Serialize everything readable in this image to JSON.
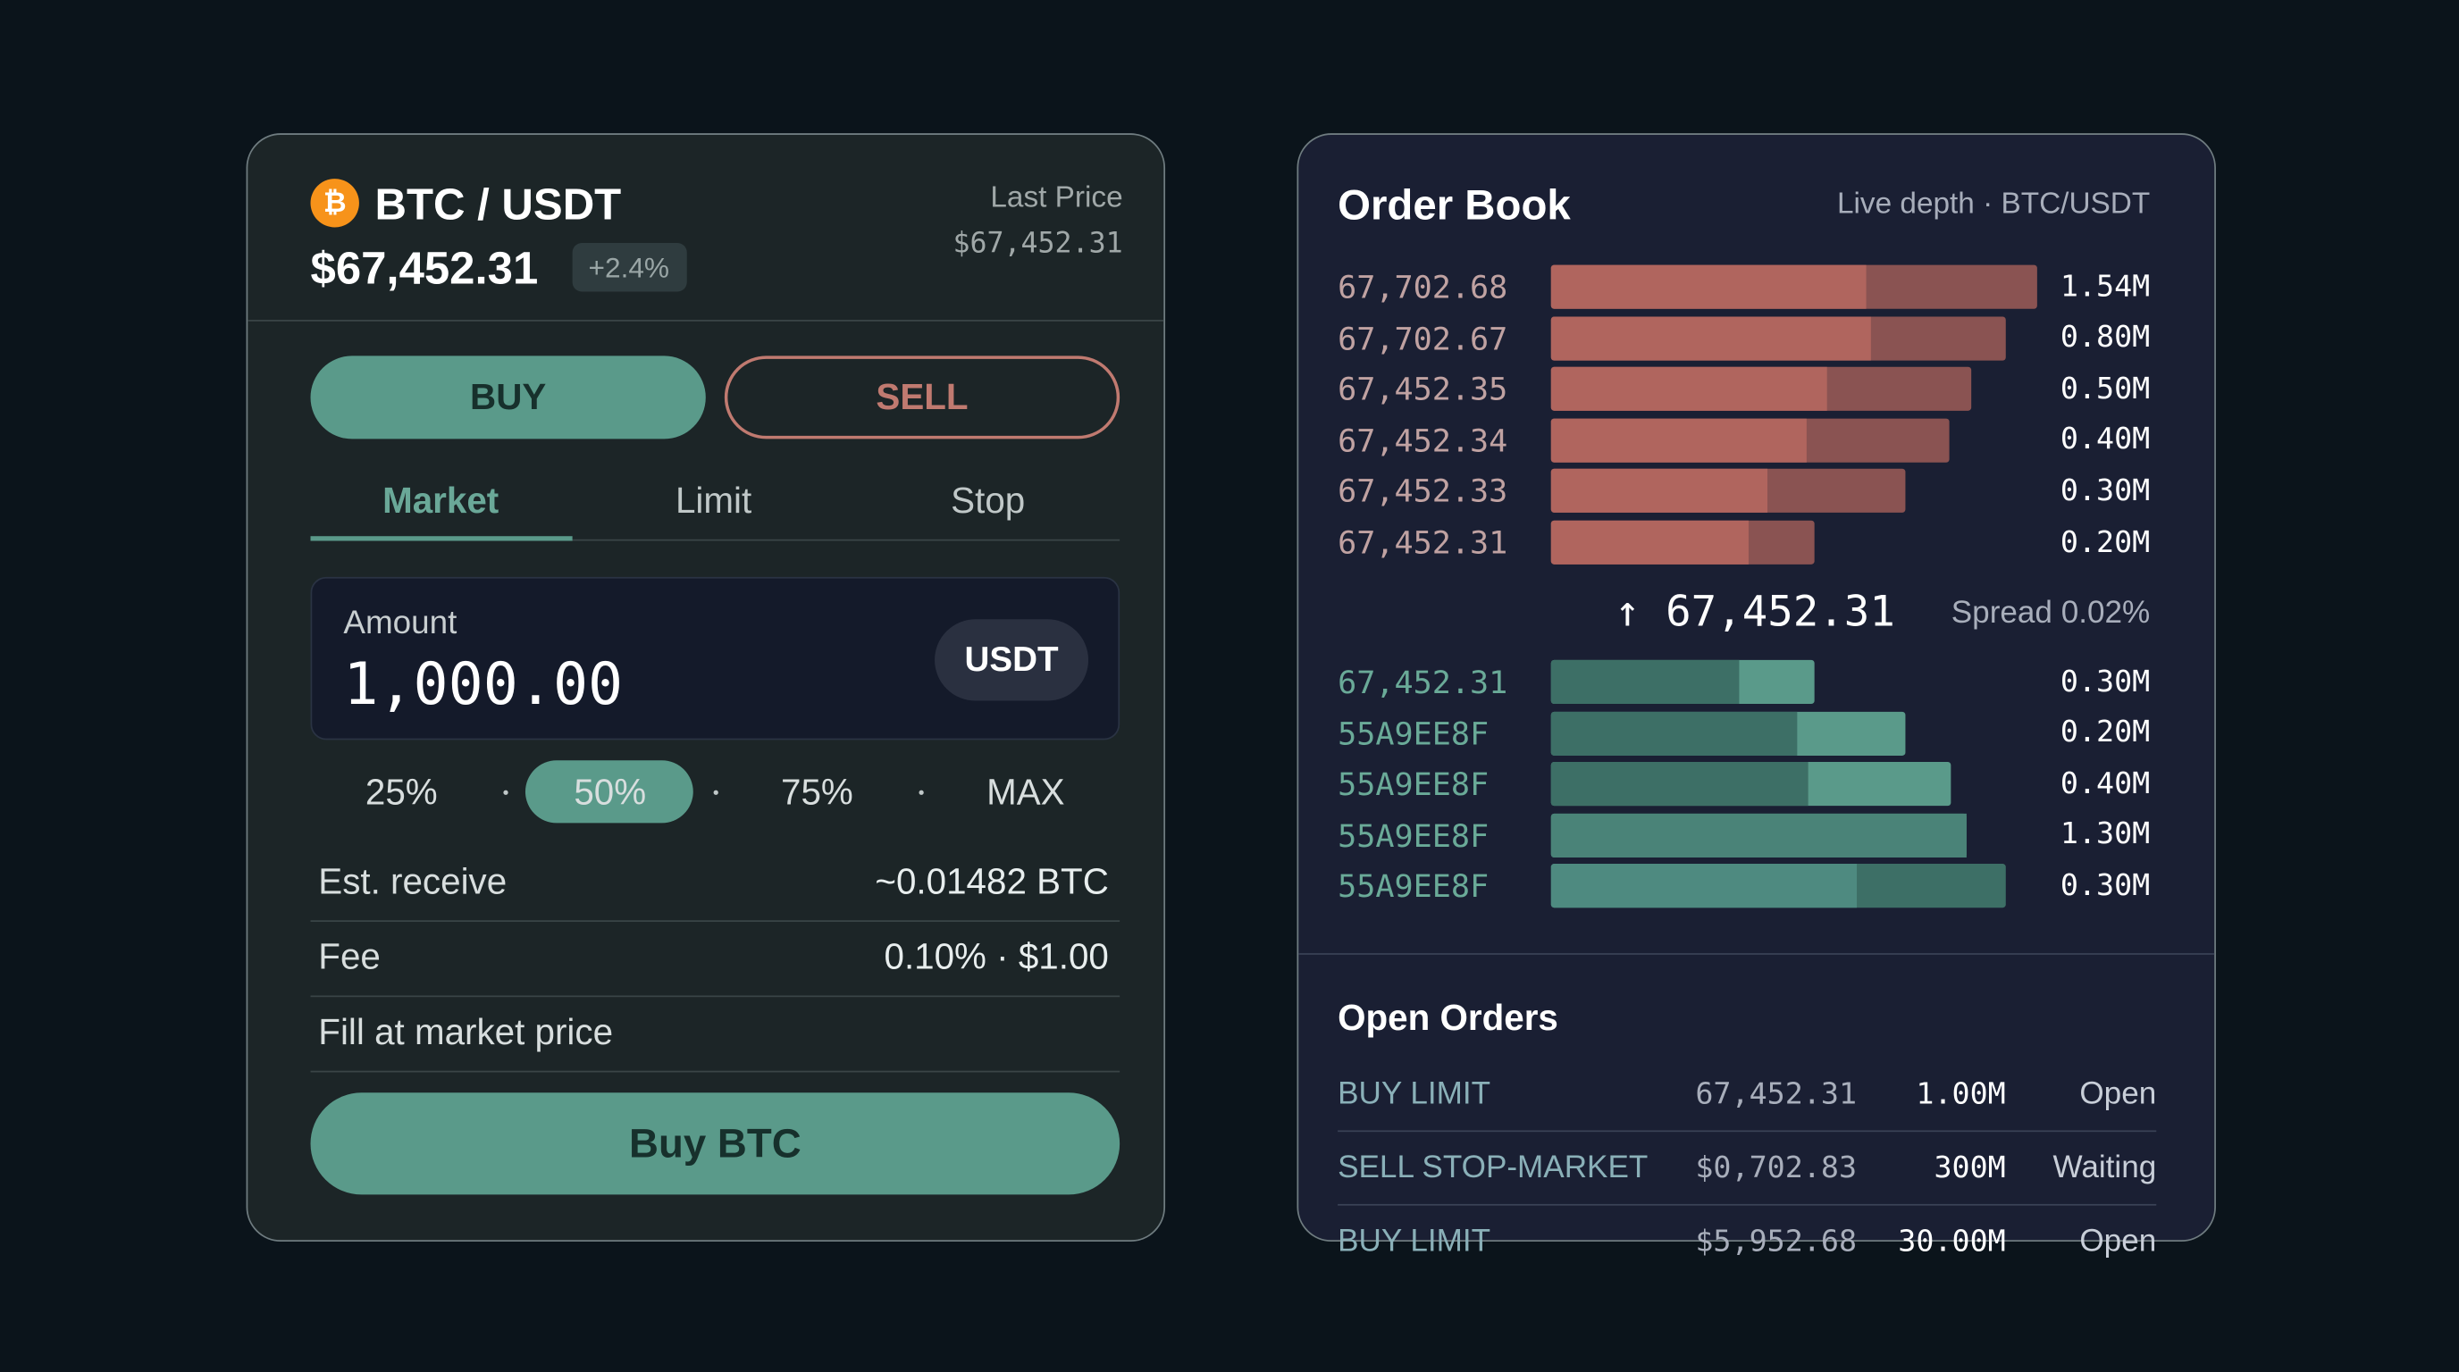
{
  "trade": {
    "pair": "BTC / USDT",
    "price": "$67,452.31",
    "change": "+2.4%",
    "last_price_label": "Last Price",
    "last_price": "$67,452.31",
    "sides": [
      "BUY",
      "SELL"
    ],
    "order_types": [
      "Market",
      "Limit",
      "Stop"
    ],
    "amount_label": "Amount",
    "amount": "1,000.00",
    "currency": "USDT",
    "percentages": [
      "25%",
      "50%",
      "75%",
      "MAX"
    ],
    "details": [
      {
        "label": "Est. receive",
        "value": "~0.01482 BTC"
      },
      {
        "label": "Fee",
        "value": "0.10% · $1.00"
      }
    ],
    "note": "Fill at market price",
    "submit": "Buy BTC"
  },
  "order_book": {
    "title": "Order Book",
    "subtitle": "Live depth · BTC/USDT",
    "asks": [
      {
        "price": "67,702.68",
        "size": "1.54M"
      },
      {
        "price": "67,702.67",
        "size": "0.80M"
      },
      {
        "price": "67,452.35",
        "size": "0.50M"
      },
      {
        "price": "67,452.34",
        "size": "0.40M"
      },
      {
        "price": "67,452.33",
        "size": "0.30M"
      },
      {
        "price": "67,452.31",
        "size": "0.20M"
      }
    ],
    "mid_price": "↑ 67,452.31",
    "spread": "Spread 0.02%",
    "bids": [
      {
        "price": "67,452.31",
        "size": "0.30M"
      },
      {
        "price": "55A9EE8F",
        "size": "0.20M"
      },
      {
        "price": "55A9EE8F",
        "size": "0.40M"
      },
      {
        "price": "55A9EE8F",
        "size": "1.30M"
      },
      {
        "price": "55A9EE8F",
        "size": "0.30M"
      }
    ]
  },
  "open_orders": {
    "title": "Open Orders",
    "rows": [
      [
        "BUY LIMIT",
        "67,452.31",
        "1.00M",
        "Open"
      ],
      [
        "SELL STOP-MARKET",
        "$0,702.83",
        "300M",
        "Waiting"
      ],
      [
        "BUY LIMIT",
        "$5,952.68",
        "30.00M",
        "Open"
      ]
    ]
  }
}
